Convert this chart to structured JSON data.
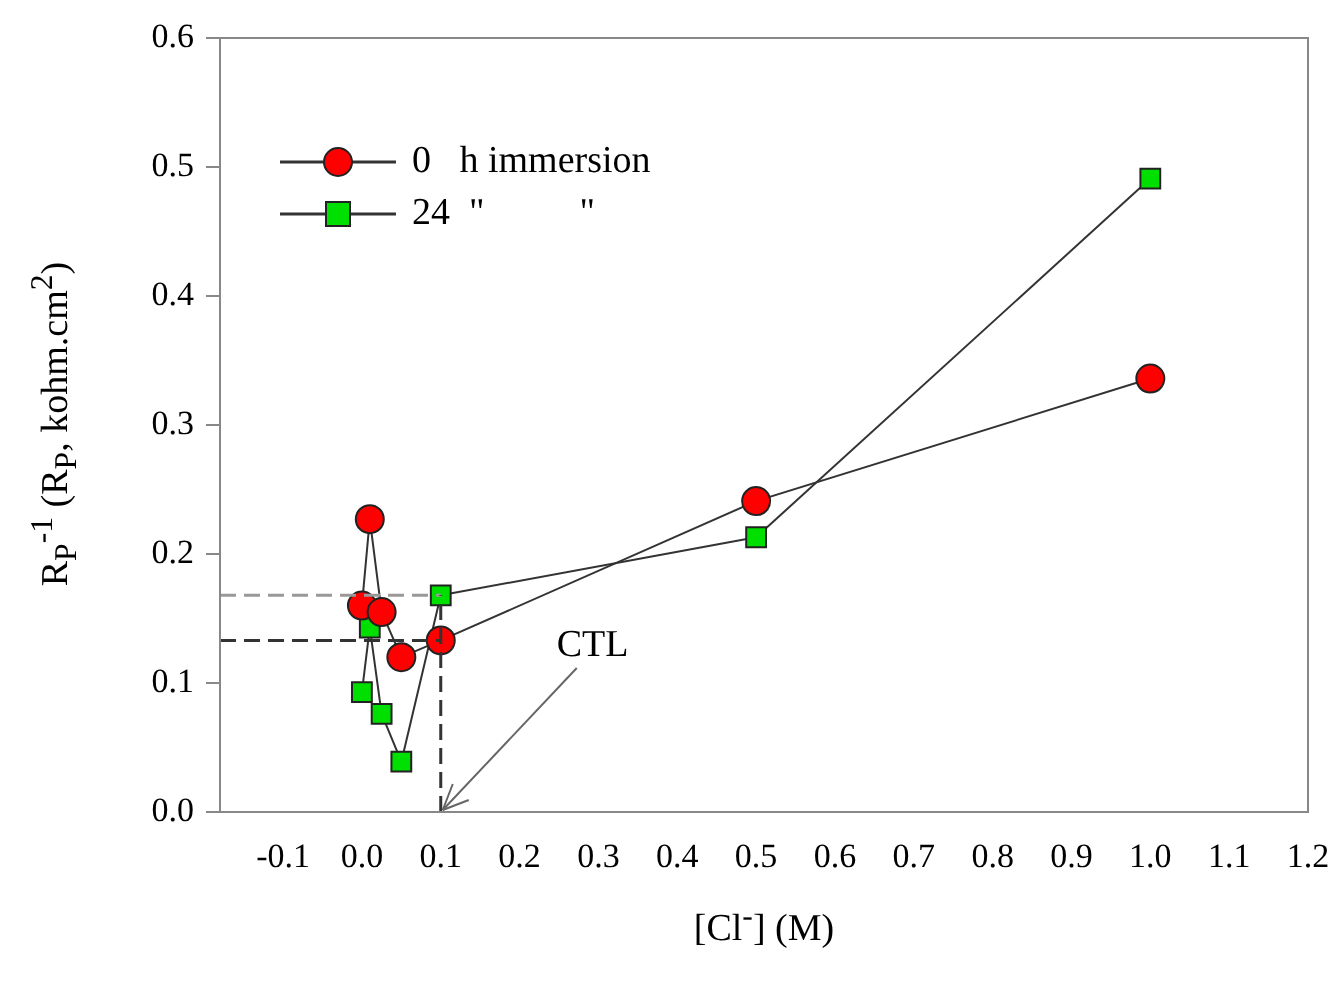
{
  "chart_data": {
    "type": "line",
    "xlabel": "[Cl$^{-}$] (M)",
    "ylabel": "R$_{P}$$^{-1}$ (R$_{P}$, kohm.cm$^{2}$)",
    "xlim": [
      -0.18,
      1.2
    ],
    "xticks": [
      -0.1,
      {
        "value": 0,
        "label": "0.0"
      },
      0.1,
      0.2,
      0.3,
      0.4,
      0.5,
      0.6,
      0.7,
      0.8,
      0.9,
      {
        "value": 1,
        "label": "1.0"
      },
      1.1,
      1.2
    ],
    "ylim": [
      0,
      0.6
    ],
    "yticks": [
      {
        "value": 0,
        "label": "0.0"
      },
      0.1,
      0.2,
      0.3,
      0.4,
      0.5,
      0.6
    ],
    "grid": false,
    "legend": "top left",
    "line_style": "solid",
    "series": [
      {
        "name": "0   h immersion",
        "color": "#ff0000",
        "marker": "circle",
        "x": [
          0,
          0.01,
          0.025,
          0.05,
          0.1,
          0.5,
          1.0
        ],
        "values": [
          0.16,
          0.227,
          0.155,
          0.12,
          0.133,
          0.241,
          0.336
        ]
      },
      {
        "name": "24  \"          \"",
        "color": "#00e000",
        "marker": "square",
        "x": [
          0,
          0.01,
          0.025,
          0.05,
          0.1,
          0.5,
          1.0
        ],
        "values": [
          0.093,
          0.143,
          0.076,
          0.039,
          0.168,
          0.213,
          0.491
        ]
      }
    ],
    "ref_lines": [
      {
        "axis": "y",
        "value": 0.168,
        "color": "#999999",
        "line_style": "dashed"
      },
      {
        "axis": "y",
        "value": 0.133,
        "color": "#333333",
        "line_style": "dashed"
      },
      {
        "axis": "x",
        "value": 0.1,
        "color": "#333333",
        "line_style": "dashed"
      }
    ],
    "annotations": [
      {
        "text": "CTL",
        "x": 0.1,
        "y": 0
      }
    ]
  }
}
